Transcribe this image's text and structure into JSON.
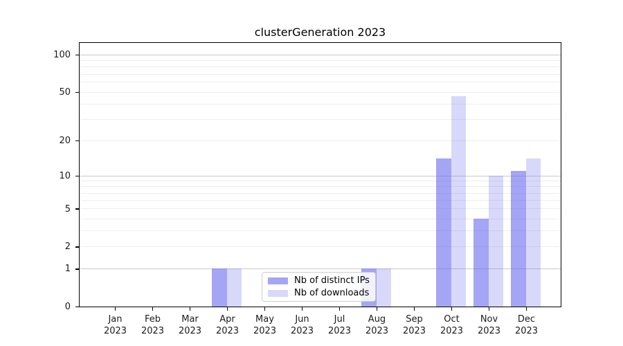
{
  "title": "clusterGeneration 2023",
  "chart_data": {
    "type": "bar",
    "title": "clusterGeneration 2023",
    "scale": "log1p",
    "categories": [
      "Jan",
      "Feb",
      "Mar",
      "Apr",
      "May",
      "Jun",
      "Jul",
      "Aug",
      "Sep",
      "Oct",
      "Nov",
      "Dec"
    ],
    "year_label": "2023",
    "series": [
      {
        "name": "Nb of distinct IPs",
        "color": "#6464f0",
        "alpha": 0.58,
        "values": [
          0,
          0,
          0,
          1,
          0,
          0,
          0,
          1,
          0,
          14,
          4,
          11
        ]
      },
      {
        "name": "Nb of downloads",
        "color": "#6464f0",
        "alpha": 0.25,
        "values": [
          0,
          0,
          0,
          1,
          0,
          0,
          0,
          1,
          0,
          46,
          10,
          14
        ]
      }
    ],
    "y_ticks": [
      0,
      1,
      2,
      5,
      10,
      20,
      50,
      100
    ],
    "y_minor_ticks": [
      3,
      4,
      6,
      7,
      8,
      9,
      30,
      40,
      60,
      70,
      80,
      90
    ],
    "y_major_gridlines": [
      1,
      10,
      100
    ],
    "ylim": [
      0,
      127
    ],
    "xlabel": "",
    "ylabel": "",
    "grid": "on",
    "legend_position": "lower center",
    "colors": {
      "grid_major": "#c9c9c9",
      "grid_minor": "#ededed",
      "axis_frame": "#000000",
      "tick_text": "#1a1a1a",
      "legend_border": "#cccccc"
    }
  }
}
